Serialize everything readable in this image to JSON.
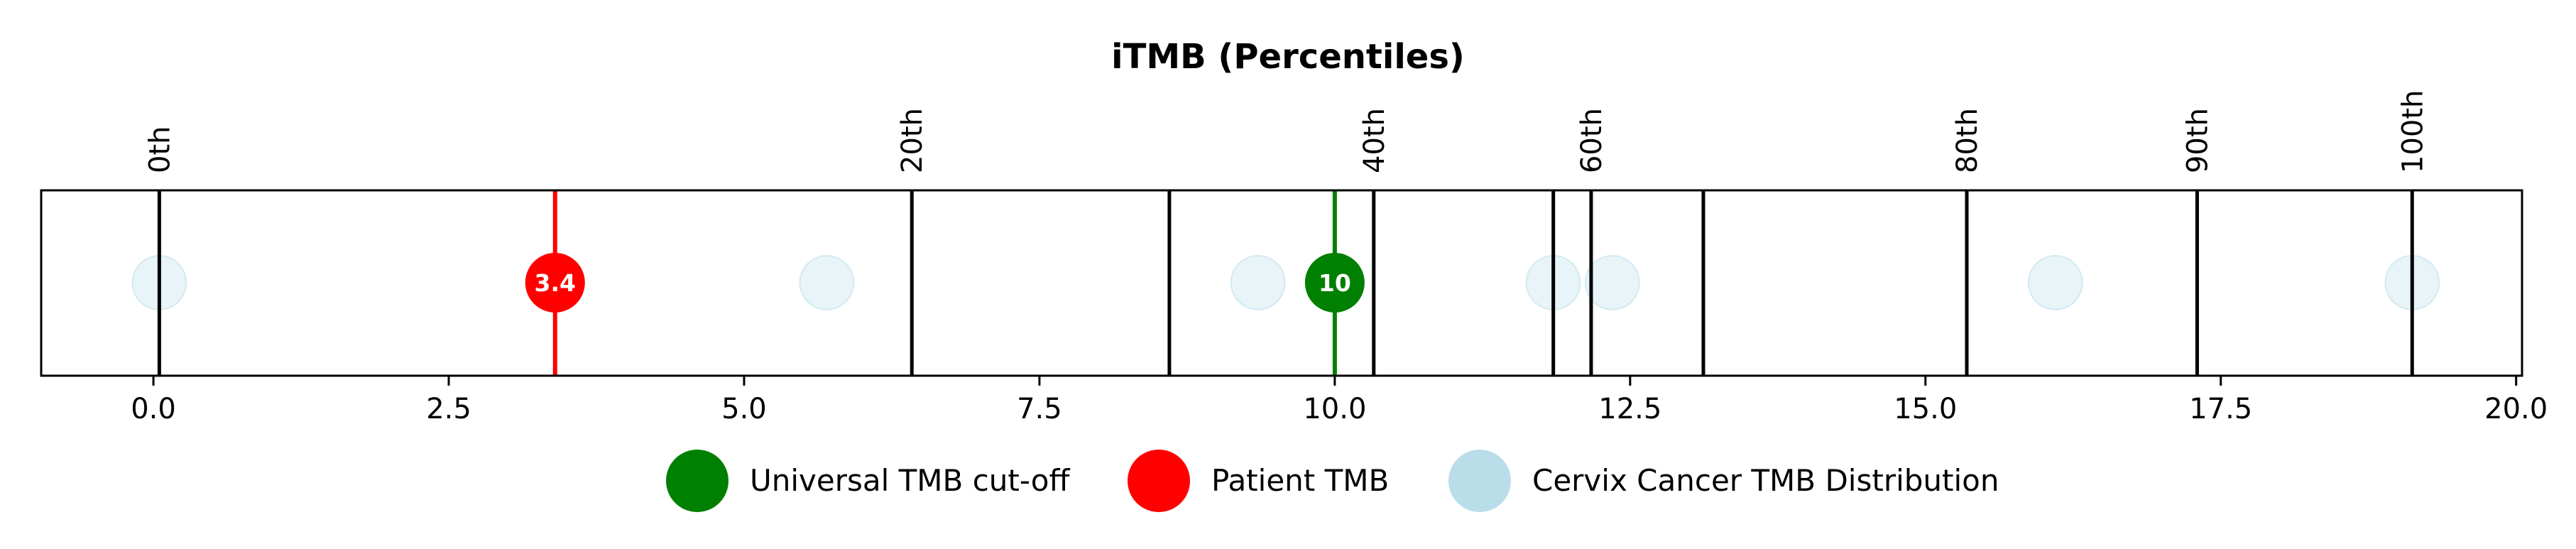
{
  "chart_data": {
    "type": "scatter",
    "title": "iTMB (Percentiles)",
    "xlabel": "",
    "ylabel": "",
    "xlim": [
      -0.95,
      20.05
    ],
    "x_ticks": [
      0.0,
      2.5,
      5.0,
      7.5,
      10.0,
      12.5,
      15.0,
      17.5,
      20.0
    ],
    "x_tick_labels": [
      "0.0",
      "2.5",
      "5.0",
      "7.5",
      "10.0",
      "12.5",
      "15.0",
      "17.5",
      "20.0"
    ],
    "percentile_lines": [
      {
        "x": 0.05,
        "label": "0th"
      },
      {
        "x": 6.42,
        "label": "20th"
      },
      {
        "x": 8.6,
        "label": ""
      },
      {
        "x": 10.33,
        "label": "40th"
      },
      {
        "x": 11.85,
        "label": ""
      },
      {
        "x": 12.17,
        "label": "60th"
      },
      {
        "x": 13.12,
        "label": ""
      },
      {
        "x": 15.35,
        "label": "80th"
      },
      {
        "x": 17.3,
        "label": "90th"
      },
      {
        "x": 19.12,
        "label": "100th"
      }
    ],
    "series": [
      {
        "name": "Universal TMB cut-off",
        "color": "#008000",
        "x": [
          10.0
        ],
        "labels": [
          "10"
        ]
      },
      {
        "name": "Patient TMB",
        "color": "#ff0000",
        "x": [
          3.4
        ],
        "labels": [
          "3.4"
        ]
      },
      {
        "name": "Cervix Cancer TMB Distribution",
        "color": "#add8e6",
        "x": [
          0.05,
          5.7,
          9.35,
          11.85,
          12.35,
          16.1,
          19.12
        ],
        "labels": []
      }
    ],
    "grid": false,
    "legend_position": "bottom-center"
  }
}
